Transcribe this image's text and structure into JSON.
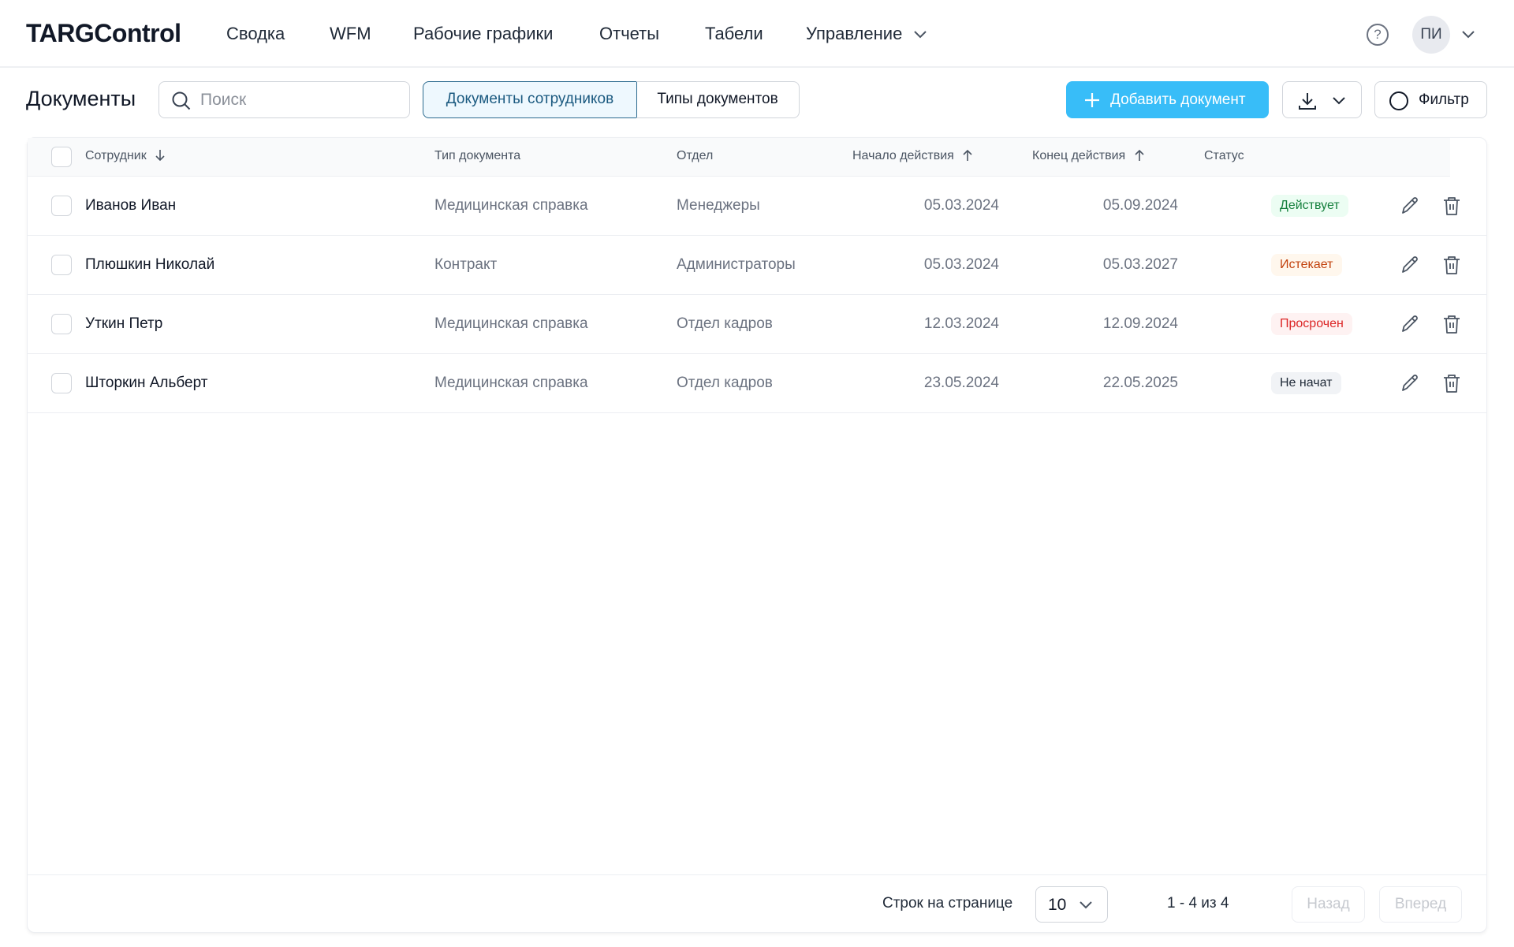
{
  "app": {
    "logo": "TARGControl",
    "nav": [
      "Сводка",
      "WFM",
      "Рабочие графики",
      "Отчеты",
      "Табели",
      "Управление"
    ],
    "help": "?",
    "avatar": "ПИ"
  },
  "toolbar": {
    "title": "Документы",
    "search_placeholder": "Поиск",
    "tabs": [
      "Документы сотрудников",
      "Типы документов"
    ],
    "active_tab": 0,
    "add_label": "Добавить документ",
    "filter_label": "Фильтр",
    "accent": "#38bdf8"
  },
  "table": {
    "columns": [
      "Сотрудник",
      "Тип документа",
      "Отдел",
      "Начало действия",
      "Конец действия",
      "Статус"
    ],
    "rows": [
      {
        "name": "Иванов Иван",
        "type": "Медицинская справка",
        "dept": "Менеджеры",
        "start": "05.03.2024",
        "end": "05.09.2024",
        "status": "Действует",
        "status_color": "#15803d",
        "status_bg": "#ecfdf3"
      },
      {
        "name": "Плюшкин Николай",
        "type": "Контракт",
        "dept": "Администраторы",
        "start": "05.03.2024",
        "end": "05.03.2027",
        "status": "Истекает",
        "status_color": "#c2410c",
        "status_bg": "#fff7ed"
      },
      {
        "name": "Уткин Петр",
        "type": "Медицинская справка",
        "dept": "Отдел кадров",
        "start": "12.03.2024",
        "end": "12.09.2024",
        "status": "Просрочен",
        "status_color": "#dc2626",
        "status_bg": "#fef2f2"
      },
      {
        "name": "Шторкин Альберт",
        "type": "Медицинская справка",
        "dept": "Отдел кадров",
        "start": "23.05.2024",
        "end": "22.05.2025",
        "status": "Не начат",
        "status_color": "#1f2937",
        "status_bg": "#f1f3f6"
      }
    ]
  },
  "footer": {
    "rows_label": "Строк на странице",
    "rows_value": "10",
    "range": "1 - 4 из 4",
    "prev": "Назад",
    "next": "Вперед"
  }
}
